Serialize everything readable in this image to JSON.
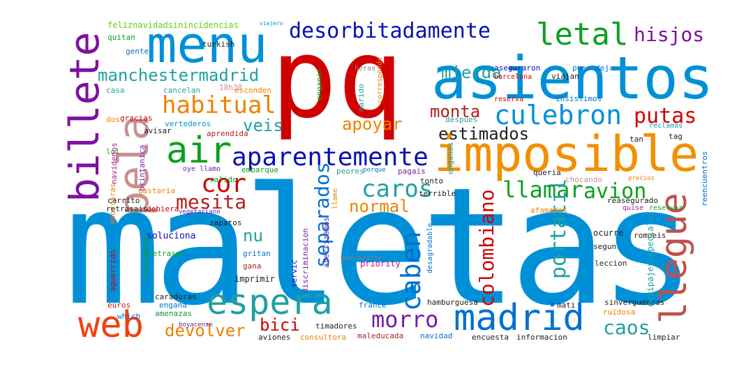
{
  "palette": {
    "red": "#d00000",
    "blue": "#0090d8",
    "navy": "#0a10b8",
    "green": "#0aa020",
    "purple": "#8010a0",
    "orange": "#f08000",
    "rose": "#c89090",
    "teal": "#20a0a0",
    "dkred": "#b02020",
    "brown": "#c0504c",
    "magenta": "#b01890",
    "lime": "#60d018",
    "violet": "#7020a8",
    "darkgray": "#202020"
  },
  "words": {
    "maletas": "maletas",
    "pq": "pq",
    "asientos": "asientos",
    "imposible": "imposible",
    "menu": "menu",
    "billete": "billete",
    "pela": "pela",
    "air": "air",
    "aparentemente": "aparentemente",
    "llegue": "llegue",
    "espera": "espera",
    "madrid": "madrid",
    "web": "web",
    "letal": "letal",
    "desorbitadamente": "desorbitadamente",
    "manchestermadrid": "manchestermadrid",
    "habitual": "habitual",
    "culebron": "culebron",
    "hisjos": "hisjos",
    "mierda": "mierda",
    "monta": "monta",
    "putas": "putas",
    "estimados": "estimados",
    "apoyar": "apoyar",
    "veis": "veis",
    "caros": "caros",
    "cor": "cor",
    "mesita": "mesita",
    "llamar": "llamar",
    "avion": "avion",
    "separados": "separados",
    "colombiano": "colombiano",
    "portatil": "portatil",
    "normal": "normal",
    "nu": "nu",
    "caben": "caben",
    "morro": "morro",
    "bici": "bici",
    "devolver": "devolver",
    "caos": "caos",
    "reasegurado": "reasegurado",
    "feliznavidadsinincidencias": "feliznavidadsinincidencias",
    "viajero": "viajero",
    "quitan": "quitan",
    "gente": "gente",
    "casa": "casa",
    "cancelan": "cancelan",
    "esconden": "esconden",
    "h18h30": "18h30",
    "heras": "heras",
    "marido": "marido",
    "asegurarion": "aseguraron",
    "viajan": "viajan",
    "barcelona": "barcelona",
    "pues_deja": "pues deja",
    "reserva": "reserva",
    "insistimos": "insistimos",
    "gracias": "gracias",
    "dos": "dos",
    "avisar": "avisar",
    "vertederos": "vertederos",
    "aprendida": "aprendida",
    "despues": "despues",
    "reclamas": "reclamas",
    "tag": "tag",
    "tan": "tan",
    "lol": "lol",
    "navidenos": "navidenos",
    "brintanica": "brintanica",
    "embarque": "embarque",
    "peores": "peores",
    "pagais": "pagais",
    "tonto": "tonto",
    "queria": "queria",
    "chocando": "chocando",
    "precios": "precios",
    "ahorraras": "ahorraras",
    "gastaria": "gastaria",
    "retrasais": "retrasais",
    "debiera": "debiera",
    "valido": "valido",
    "carrito": "carrito",
    "afamadas": "afamadas",
    "terrible": "terrible",
    "quise": "quise",
    "reservar": "reservar",
    "zapatos": "zapatos",
    "vegetariano": "vegetariano",
    "soluciona": "soluciona",
    "ocurre": "ocurre",
    "rompeis": "rompeis",
    "retrasar": "retrasar",
    "gritan": "gritan",
    "segun": "segun",
    "gana": "gana",
    "priority": "priority",
    "leccion": "leccion",
    "imprimir": "imprimir",
    "manchester": "manchester",
    "desagradable": "desagradable",
    "aguerrido": "aguerrido",
    "verguenza": "verguenza",
    "caraduras": "caraduras",
    "enqana": "engana",
    "amenazas": "amenazas",
    "euros": "euros",
    "hamburguesa": "hamburguesa",
    "france": "france",
    "mati": "mati",
    "sinverguenzas": "sinverguenzas",
    "ruidosa": "ruidosa",
    "equipajesespeciales": "equipajesespeciales",
    "reencuentros": "reencuentros",
    "boyacense": "boyacense",
    "timadores": "timadores",
    "aviones": "aviones",
    "consultora": "consultora",
    "maleducada": "maleducada",
    "navidad": "navidad",
    "encuesta": "encuesta",
    "informacion": "informacion",
    "limpiar": "limpiar",
    "turkish": "turkish",
    "which": "which",
    "corresponde": "corresponde",
    "enganar": "enganar",
    "enganos": "enganos",
    "servic": "servic",
    "discriminacion": "discriminacion",
    "aterrizamos": "aterrizamos",
    "llame": "llame",
    "porque": "porque",
    "oye_llamo": "oye llamo"
  }
}
